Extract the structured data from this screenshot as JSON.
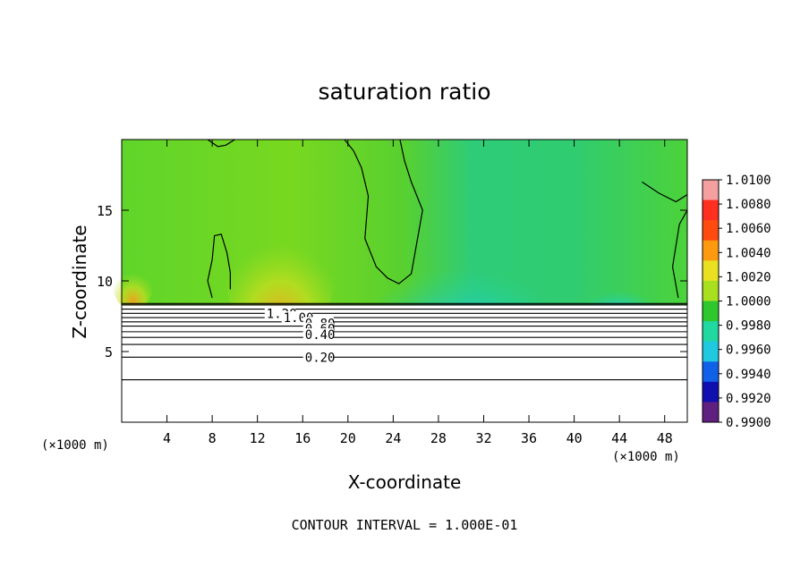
{
  "chart_data": {
    "type": "heatmap",
    "title": "saturation ratio",
    "xlabel": "X-coordinate",
    "ylabel": "Z-coordinate",
    "x_unit_left": "(×1000 m)",
    "x_unit_right": "(×1000 m)",
    "xlim": [
      0,
      50
    ],
    "ylim": [
      0,
      20
    ],
    "x_ticks": [
      "4",
      "8",
      "12",
      "16",
      "20",
      "24",
      "28",
      "32",
      "36",
      "40",
      "44",
      "48"
    ],
    "y_ticks": [
      "5",
      "10",
      "15"
    ],
    "colorbar": {
      "levels": [
        "1.0100",
        "1.0080",
        "1.0060",
        "1.0040",
        "1.0020",
        "1.0000",
        "0.9980",
        "0.9960",
        "0.9940",
        "0.9920",
        "0.9900"
      ],
      "colors": [
        "#f5a0a0",
        "#ff3020",
        "#ff4a10",
        "#ff9a10",
        "#e8e020",
        "#a8e020",
        "#2ec82e",
        "#20d8a0",
        "#20c8e0",
        "#1060e8",
        "#1010b0",
        "#602080"
      ]
    },
    "contour_labels": [
      "1.20",
      "1.00",
      "0.80",
      "0.60",
      "0.40",
      "0.20"
    ],
    "contour_levels_z": [
      3.0,
      4.6,
      5.5,
      6.0,
      6.4,
      6.8,
      7.1,
      7.4,
      7.7,
      8.0,
      8.4
    ],
    "cloud_base_z": 8.3,
    "contour_interval_text": "CONTOUR INTERVAL = 1.000E-01"
  }
}
